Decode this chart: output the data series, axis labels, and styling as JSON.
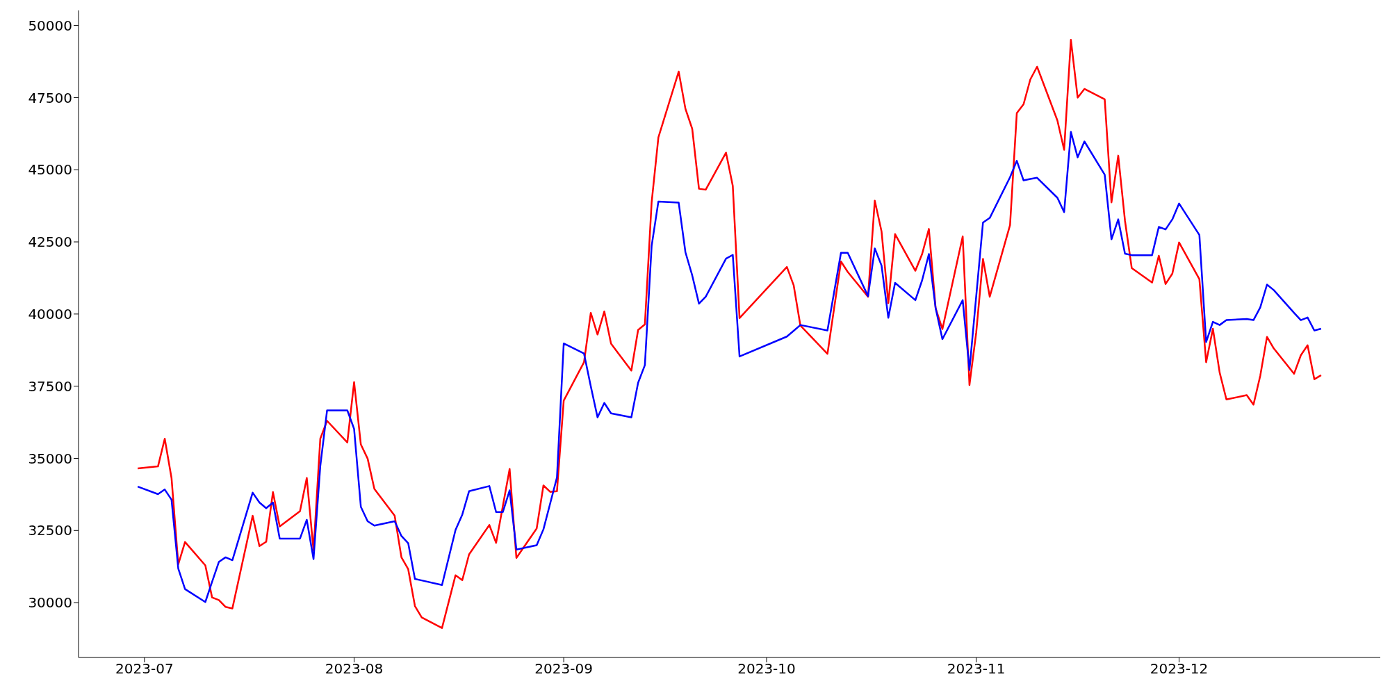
{
  "chart_data": {
    "type": "line",
    "x": [
      "2023-06-30",
      "2023-07-03",
      "2023-07-04",
      "2023-07-05",
      "2023-07-06",
      "2023-07-07",
      "2023-07-10",
      "2023-07-11",
      "2023-07-12",
      "2023-07-13",
      "2023-07-14",
      "2023-07-17",
      "2023-07-18",
      "2023-07-19",
      "2023-07-20",
      "2023-07-21",
      "2023-07-24",
      "2023-07-25",
      "2023-07-26",
      "2023-07-27",
      "2023-07-28",
      "2023-07-31",
      "2023-08-01",
      "2023-08-02",
      "2023-08-03",
      "2023-08-04",
      "2023-08-07",
      "2023-08-08",
      "2023-08-09",
      "2023-08-10",
      "2023-08-11",
      "2023-08-14",
      "2023-08-16",
      "2023-08-17",
      "2023-08-18",
      "2023-08-21",
      "2023-08-22",
      "2023-08-23",
      "2023-08-24",
      "2023-08-25",
      "2023-08-28",
      "2023-08-29",
      "2023-08-30",
      "2023-08-31",
      "2023-09-01",
      "2023-09-04",
      "2023-09-05",
      "2023-09-06",
      "2023-09-07",
      "2023-09-08",
      "2023-09-11",
      "2023-09-12",
      "2023-09-13",
      "2023-09-14",
      "2023-09-15",
      "2023-09-18",
      "2023-09-19",
      "2023-09-20",
      "2023-09-21",
      "2023-09-22",
      "2023-09-25",
      "2023-09-26",
      "2023-09-27",
      "2023-10-04",
      "2023-10-05",
      "2023-10-06",
      "2023-10-10",
      "2023-10-12",
      "2023-10-13",
      "2023-10-16",
      "2023-10-17",
      "2023-10-18",
      "2023-10-19",
      "2023-10-20",
      "2023-10-23",
      "2023-10-24",
      "2023-10-25",
      "2023-10-26",
      "2023-10-27",
      "2023-10-30",
      "2023-10-31",
      "2023-11-01",
      "2023-11-02",
      "2023-11-03",
      "2023-11-06",
      "2023-11-07",
      "2023-11-08",
      "2023-11-09",
      "2023-11-10",
      "2023-11-13",
      "2023-11-14",
      "2023-11-15",
      "2023-11-16",
      "2023-11-17",
      "2023-11-20",
      "2023-11-21",
      "2023-11-22",
      "2023-11-23",
      "2023-11-24",
      "2023-11-27",
      "2023-11-28",
      "2023-11-29",
      "2023-11-30",
      "2023-12-01",
      "2023-12-04",
      "2023-12-05",
      "2023-12-06",
      "2023-12-07",
      "2023-12-08",
      "2023-12-11",
      "2023-12-12",
      "2023-12-13",
      "2023-12-14",
      "2023-12-15",
      "2023-12-18",
      "2023-12-19",
      "2023-12-20",
      "2023-12-21",
      "2023-12-22"
    ],
    "series": [
      {
        "color": "#ff0000",
        "values": [
          34650,
          34720,
          35680,
          34320,
          31330,
          32100,
          31290,
          30180,
          30090,
          29850,
          29800,
          33010,
          31960,
          32110,
          33830,
          32640,
          33170,
          34320,
          31810,
          35680,
          36300,
          35550,
          37640,
          35480,
          34990,
          33940,
          33010,
          31570,
          31160,
          29880,
          29490,
          29120,
          30950,
          30780,
          31670,
          32690,
          32070,
          33350,
          34630,
          31550,
          32570,
          34060,
          33840,
          33860,
          37000,
          38330,
          40040,
          39290,
          40090,
          38970,
          38040,
          39450,
          39640,
          43870,
          46120,
          48400,
          47110,
          46420,
          44340,
          44310,
          45590,
          44440,
          39860,
          41630,
          41000,
          39600,
          38620,
          41820,
          41460,
          40600,
          43930,
          42860,
          40380,
          42770,
          41500,
          42080,
          42950,
          40200,
          39480,
          42690,
          37540,
          39360,
          41910,
          40600,
          43080,
          46960,
          47270,
          48130,
          48570,
          46710,
          45690,
          49500,
          47500,
          47800,
          47440,
          43870,
          45490,
          43230,
          41590,
          41090,
          42020,
          41040,
          41400,
          42480,
          41210,
          38330,
          39490,
          37970,
          37040,
          37190,
          36860,
          37860,
          39210,
          38810,
          37930,
          38570,
          38920,
          37740,
          37880
        ]
      },
      {
        "color": "#0000ff",
        "values": [
          34020,
          33760,
          33920,
          33570,
          31180,
          30470,
          30020,
          30720,
          31410,
          31570,
          31470,
          33810,
          33470,
          33270,
          33470,
          32220,
          32220,
          32870,
          31510,
          34730,
          36660,
          36660,
          36020,
          33320,
          32820,
          32670,
          32820,
          32310,
          32060,
          30820,
          30770,
          30610,
          32520,
          33050,
          33860,
          34040,
          33140,
          33140,
          33890,
          31840,
          31990,
          32540,
          33440,
          34340,
          38980,
          38630,
          37500,
          36420,
          36920,
          36560,
          36420,
          37620,
          38230,
          42360,
          43900,
          43860,
          42140,
          41340,
          40360,
          40600,
          41920,
          42050,
          38530,
          39220,
          39420,
          39620,
          39430,
          42120,
          42120,
          40620,
          42270,
          41680,
          39870,
          41080,
          40480,
          41170,
          42080,
          40200,
          39130,
          40480,
          38060,
          40620,
          43170,
          43330,
          44740,
          45310,
          44630,
          44680,
          44720,
          44030,
          43530,
          46310,
          45430,
          45980,
          44830,
          42590,
          43280,
          42090,
          42040,
          42040,
          43020,
          42930,
          43280,
          43830,
          42740,
          39030,
          39730,
          39620,
          39790,
          39830,
          39790,
          40230,
          41020,
          40830,
          40040,
          39790,
          39880,
          39430,
          39490
        ]
      }
    ],
    "xlim": [
      "2023-06-21T06:00",
      "2023-12-30T18:00"
    ],
    "xticks": [
      "2023-07",
      "2023-08",
      "2023-09",
      "2023-10",
      "2023-11",
      "2023-12"
    ],
    "ylim": [
      28100,
      50520
    ],
    "yticks": [
      30000,
      32500,
      35000,
      37500,
      40000,
      42500,
      45000,
      47500,
      50000
    ]
  }
}
